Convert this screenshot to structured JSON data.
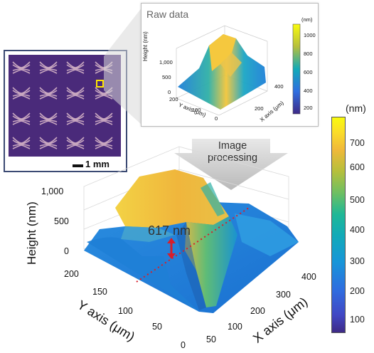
{
  "micrograph": {
    "scale_bar": "1 mm",
    "colors": {
      "background": "#4a2a7a",
      "pattern": "#d7b6c8",
      "marker": "#ffe600"
    }
  },
  "raw_inset": {
    "title": "Raw data",
    "unit": "(nm)",
    "z_label": "Height (nm)",
    "x_label": "X axis (μm)",
    "y_label": "Y axis (μm)",
    "z_ticks": [
      "1,000",
      "500",
      "0"
    ],
    "x_ticks": [
      "200",
      "400"
    ],
    "y_ticks": [
      "200",
      "100",
      "0"
    ],
    "colorbar_ticks": [
      "1000",
      "800",
      "600",
      "400",
      "200"
    ]
  },
  "processing": {
    "label_line1": "Image",
    "label_line2": "processing"
  },
  "main_plot": {
    "z_label": "Height (nm)",
    "x_label": "X axis (μm)",
    "y_label": "Y axis (μm)",
    "z_ticks": [
      "1,000",
      "500",
      "0"
    ],
    "y_ticks": [
      "200",
      "150",
      "100",
      "50",
      "0"
    ],
    "x_ticks": [
      "400",
      "300",
      "200",
      "100",
      "50"
    ],
    "annotation": "617 nm",
    "annotation_color": "#d81e2a"
  },
  "colorbar": {
    "unit": "(nm)",
    "ticks": [
      "700",
      "600",
      "500",
      "400",
      "300",
      "200",
      "100"
    ]
  },
  "colors": {
    "low": "#3e2a86",
    "mid": "#1fb896",
    "high": "#f9fb0e",
    "surface_blue": "#1e7fd8",
    "surface_yellow": "#f2c53a"
  }
}
